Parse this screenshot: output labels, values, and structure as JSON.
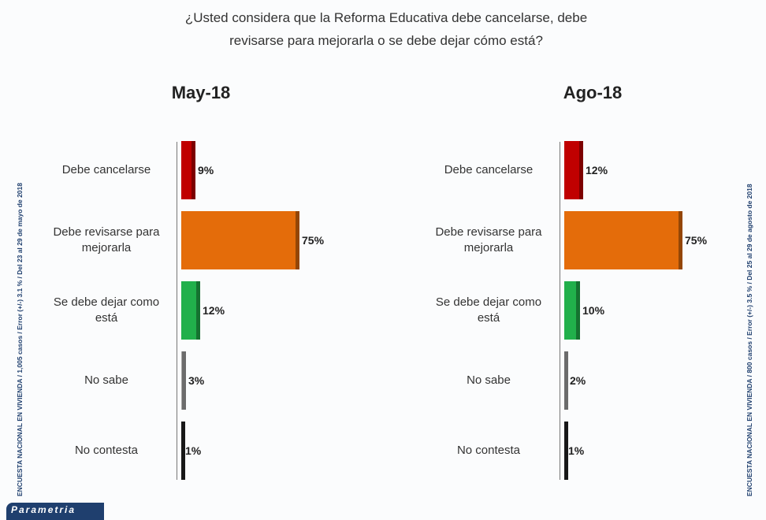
{
  "title": "¿Usted considera que la Reforma Educativa debe cancelarse, debe revisarse para mejorarla o se debe dejar cómo está?",
  "logo": "Parametria",
  "chart_data": [
    {
      "type": "bar",
      "orientation": "horizontal",
      "title": "May-18",
      "note": "ENCUESTA NACIONAL EN VIVIENDA / 1,005 casos / Error (+/-) 3.1 % / Del 23 al 29 de mayo de 2018",
      "categories": [
        "Debe cancelarse",
        "Debe revisarse para mejorarla",
        "Se debe dejar como está",
        "No sabe",
        "No contesta"
      ],
      "values": [
        9,
        75,
        12,
        3,
        1
      ],
      "value_labels": [
        "9%",
        "75%",
        "12%",
        "3%",
        "1%"
      ],
      "colors": [
        "#c00000",
        "#e46c0a",
        "#21b04b",
        "#a6a6a6",
        "#262626"
      ]
    },
    {
      "type": "bar",
      "orientation": "horizontal",
      "title": "Ago-18",
      "note": "ENCUESTA NACIONAL EN VIVIENDA / 800 casos / Error (+/-) 3.5 % / Del 25 al 29 de agosto de 2018",
      "categories": [
        "Debe cancelarse",
        "Debe revisarse para mejorarla",
        "Se debe dejar como está",
        "No sabe",
        "No contesta"
      ],
      "values": [
        12,
        75,
        10,
        2,
        1
      ],
      "value_labels": [
        "12%",
        "75%",
        "10%",
        "2%",
        "1%"
      ],
      "colors": [
        "#c00000",
        "#e46c0a",
        "#21b04b",
        "#a6a6a6",
        "#262626"
      ]
    }
  ]
}
